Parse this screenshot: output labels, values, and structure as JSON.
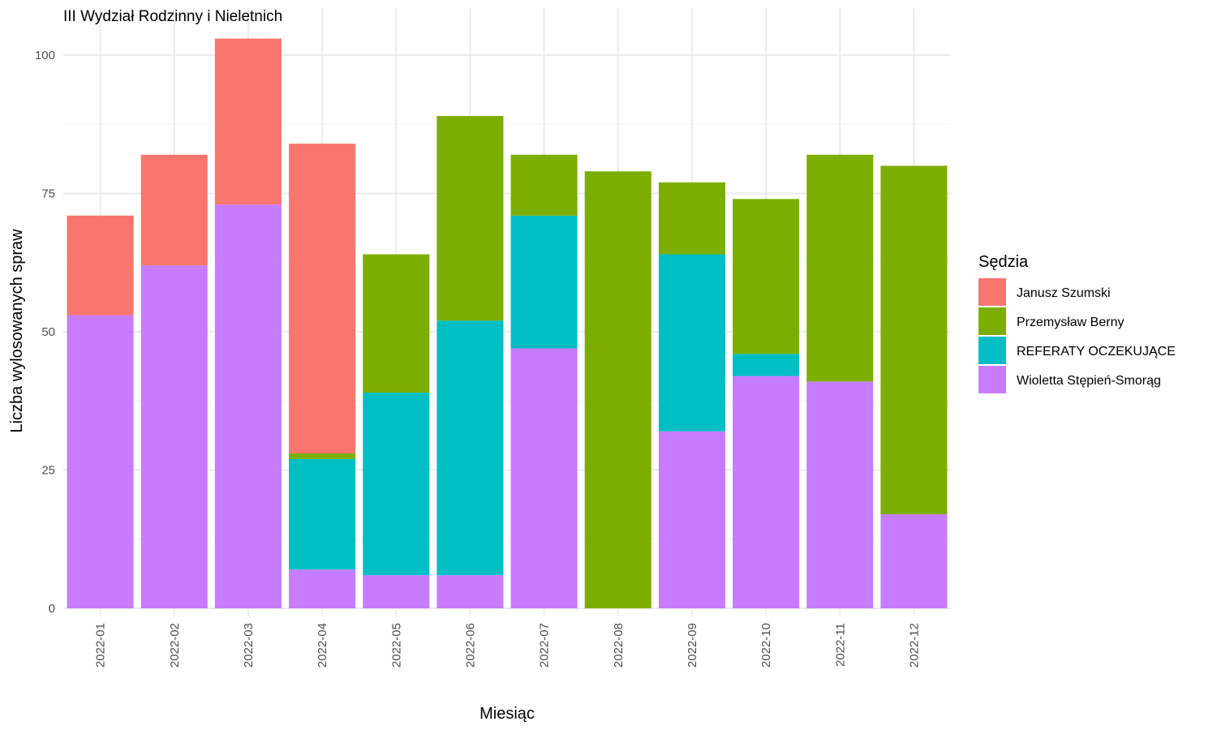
{
  "chart_data": {
    "type": "bar",
    "stacked": true,
    "title": "III Wydział Rodzinny i Nieletnich",
    "xlabel": "Miesiąc",
    "ylabel": "Liczba wylosowanych spraw",
    "ylim": [
      0,
      105
    ],
    "yticks": [
      0,
      25,
      50,
      75,
      100
    ],
    "grid": true,
    "legend": {
      "title": "Sędzia",
      "position": "right"
    },
    "categories": [
      "2022-01",
      "2022-02",
      "2022-03",
      "2022-04",
      "2022-05",
      "2022-06",
      "2022-07",
      "2022-08",
      "2022-09",
      "2022-10",
      "2022-11",
      "2022-12"
    ],
    "series": [
      {
        "name": "Janusz Szumski",
        "color": "#F8766D",
        "values": [
          18,
          20,
          30,
          56,
          0,
          0,
          0,
          0,
          0,
          0,
          0,
          0
        ]
      },
      {
        "name": "Przemysław Berny",
        "color": "#7CAE00",
        "values": [
          0,
          0,
          0,
          1,
          25,
          37,
          11,
          79,
          13,
          28,
          41,
          63
        ]
      },
      {
        "name": "REFERATY OCZEKUJĄCE",
        "color": "#00BFC4",
        "values": [
          0,
          0,
          0,
          20,
          33,
          46,
          24,
          0,
          32,
          4,
          0,
          0
        ]
      },
      {
        "name": "Wioletta Stępień-Smorąg",
        "color": "#C77CFF",
        "values": [
          53,
          62,
          73,
          7,
          6,
          6,
          47,
          0,
          32,
          42,
          41,
          17
        ]
      }
    ]
  }
}
